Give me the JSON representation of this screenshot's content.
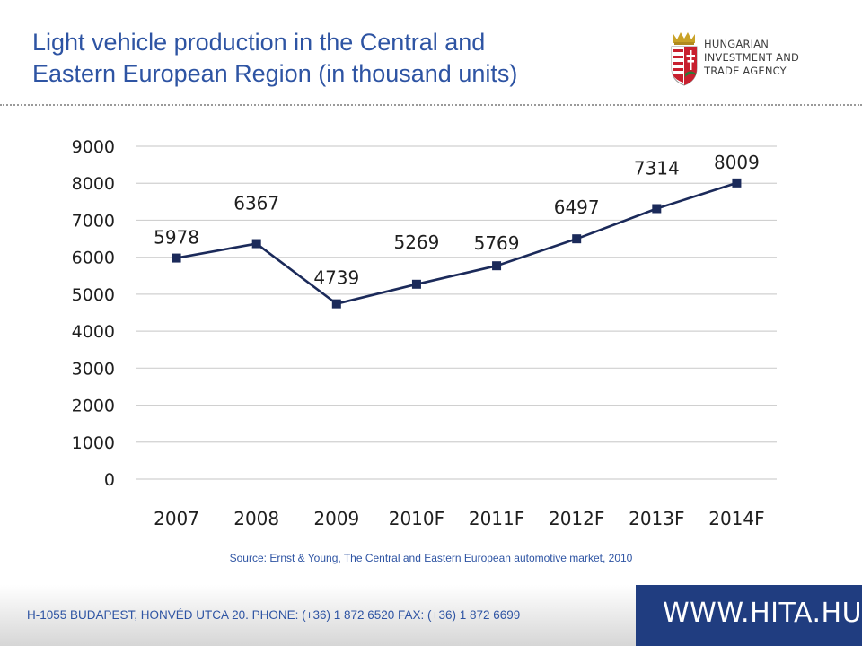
{
  "header": {
    "title_line1": "Light vehicle production in the Central and",
    "title_line2": "Eastern European Region (in thousand units)"
  },
  "logo": {
    "line1": "HUNGARIAN",
    "line2": "INVESTMENT AND",
    "line3": "TRADE AGENCY",
    "icon": "hungarian-coat-of-arms"
  },
  "chart_data": {
    "type": "line",
    "categories": [
      "2007",
      "2008",
      "2009",
      "2010F",
      "2011F",
      "2012F",
      "2013F",
      "2014F"
    ],
    "values": [
      5978,
      6367,
      4739,
      5269,
      5769,
      6497,
      7314,
      8009
    ],
    "data_labels": [
      "5978",
      "6367",
      "4739",
      "5269",
      "5769",
      "6497",
      "7314",
      "8009"
    ],
    "y_ticks": [
      "0",
      "1000",
      "2000",
      "3000",
      "4000",
      "5000",
      "6000",
      "7000",
      "8000",
      "9000"
    ],
    "ylim": [
      0,
      9000
    ],
    "grid": true,
    "legend": false,
    "line_color": "#1b2a5a",
    "marker": "square"
  },
  "source": "Source: Ernst & Young, The Central and Eastern European automotive market, 2010",
  "footer": {
    "contact": "H-1055 BUDAPEST, HONVÉD UTCA 20. PHONE: (+36) 1 872 6520  FAX: (+36) 1 872 6699",
    "website": "WWW.HITA.HU"
  },
  "colors": {
    "title": "#2e54a3",
    "footer_band": "#203d80"
  }
}
